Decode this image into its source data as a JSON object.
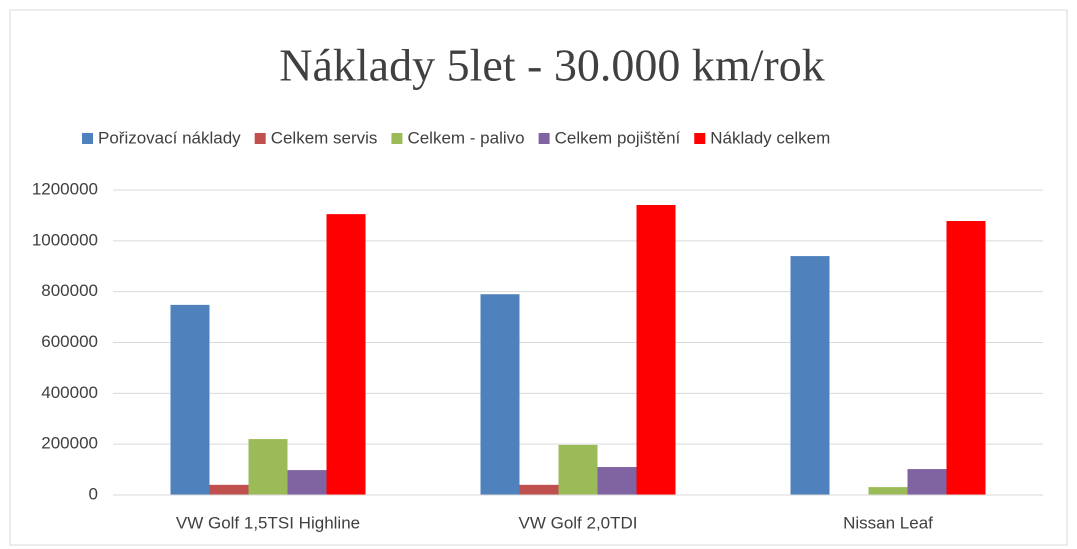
{
  "chart_data": {
    "type": "bar",
    "title": "Náklady 5let - 30.000 km/rok",
    "categories": [
      "VW Golf 1,5TSI Highline",
      "VW Golf 2,0TDI",
      "Nissan Leaf"
    ],
    "series": [
      {
        "name": "Pořizovací náklady",
        "color": "#4f81bd",
        "values": [
          748000,
          790000,
          940000
        ]
      },
      {
        "name": "Celkem servis",
        "color": "#c0504d",
        "values": [
          40000,
          40000,
          0
        ]
      },
      {
        "name": "Celkem - palivo",
        "color": "#9bbb59",
        "values": [
          220000,
          197000,
          31000
        ]
      },
      {
        "name": "Celkem pojištění",
        "color": "#8064a2",
        "values": [
          98000,
          110000,
          102000
        ]
      },
      {
        "name": "Náklady celkem",
        "color": "#ff0000",
        "values": [
          1105000,
          1141000,
          1078000
        ]
      }
    ],
    "ylim": [
      0,
      1200000
    ],
    "yticks": [
      0,
      200000,
      400000,
      600000,
      800000,
      1000000,
      1200000
    ],
    "grid": true,
    "legend": "top"
  }
}
